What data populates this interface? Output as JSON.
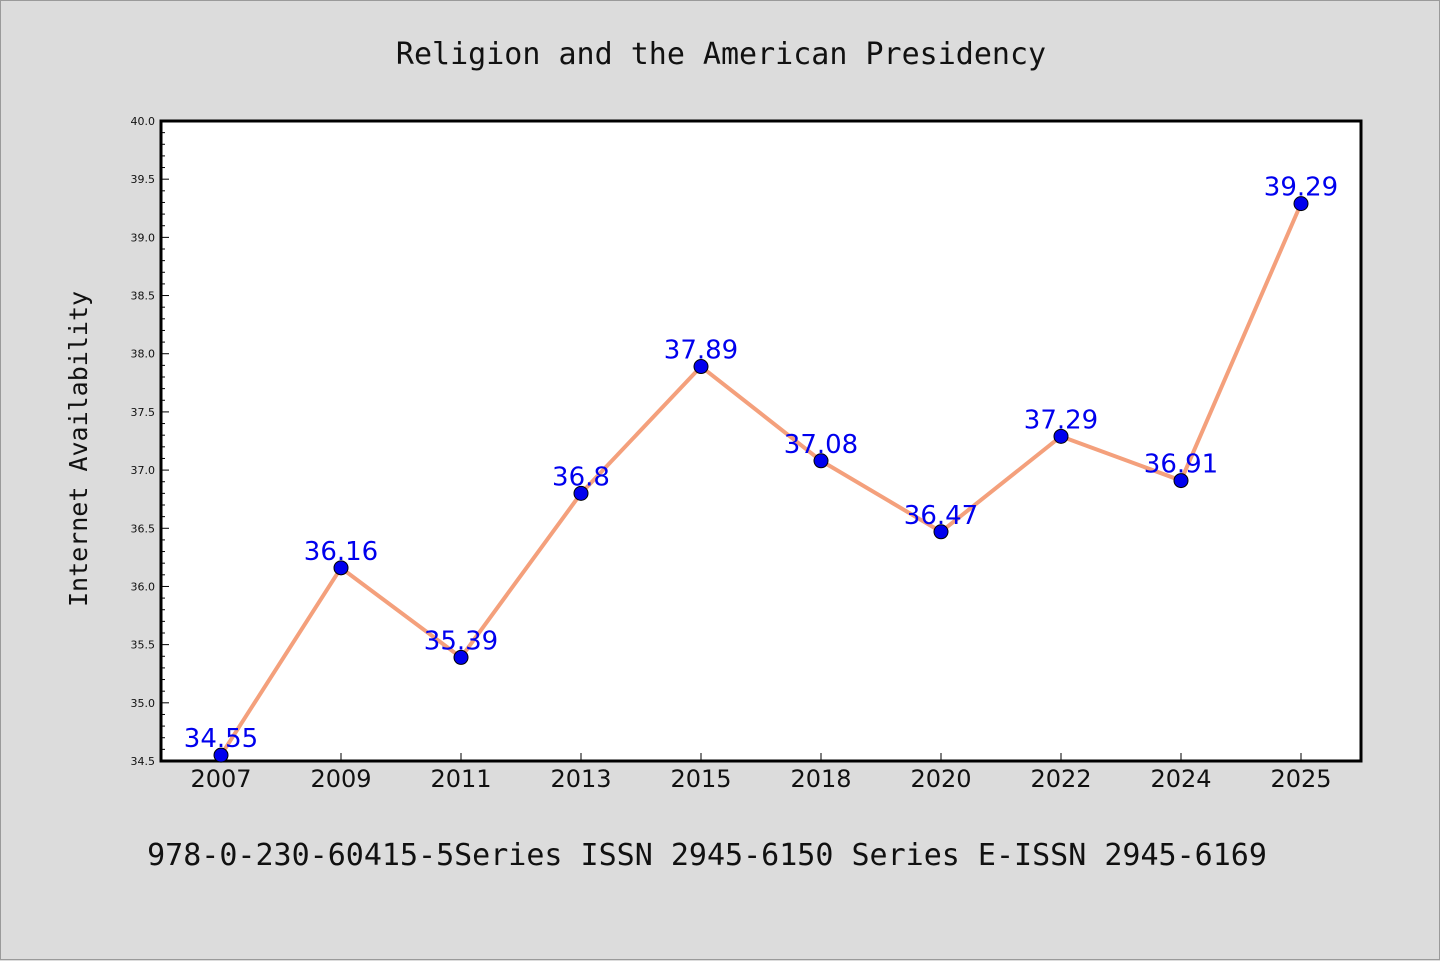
{
  "chart_data": {
    "type": "line",
    "title": "Religion and the American Presidency",
    "xlabel": "",
    "ylabel": "Internet Availability",
    "categories": [
      "2007",
      "2009",
      "2011",
      "2013",
      "2015",
      "2018",
      "2020",
      "2022",
      "2024",
      "2025"
    ],
    "series": [
      {
        "values": [
          34.55,
          36.16,
          35.39,
          36.8,
          37.89,
          37.08,
          36.47,
          37.29,
          36.91,
          39.29
        ],
        "labels": [
          "34.55",
          "36.16",
          "35.39",
          "36.8",
          "37.89",
          "37.08",
          "36.47",
          "37.29",
          "36.91",
          "39.29"
        ],
        "line_color": "#f4a07c",
        "marker_color": "#0000ee"
      }
    ],
    "ylim": [
      34.5,
      40.0
    ],
    "yticks": [
      "34.5",
      "35.0",
      "35.5",
      "36.0",
      "36.5",
      "37.0",
      "37.5",
      "38.0",
      "38.5",
      "39.0",
      "39.5",
      "40.0"
    ],
    "grid": false,
    "footer": "978-0-230-60415-5Series ISSN 2945-6150 Series E-ISSN 2945-6169"
  }
}
